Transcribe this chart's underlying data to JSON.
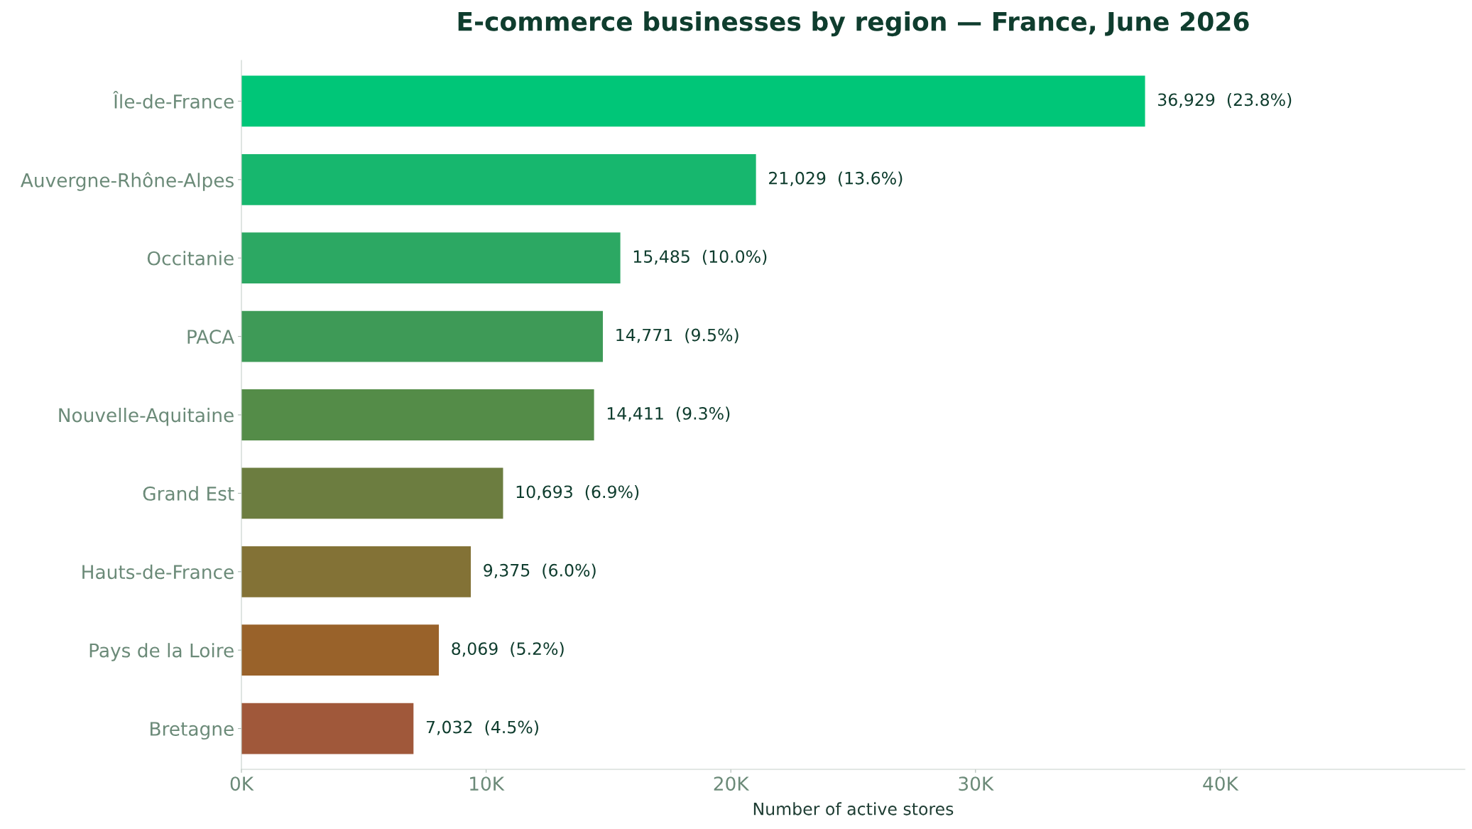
{
  "chart_data": {
    "type": "bar",
    "orientation": "horizontal",
    "title": "E-commerce businesses by region — France, June 2026",
    "xlabel": "Number of active stores",
    "categories": [
      "Île-de-France",
      "Auvergne-Rhône-Alpes",
      "Occitanie",
      "PACA",
      "Nouvelle-Aquitaine",
      "Grand Est",
      "Hauts-de-France",
      "Pays de la Loire",
      "Bretagne"
    ],
    "values": [
      36929,
      21029,
      15485,
      14771,
      14411,
      10693,
      9375,
      8069,
      7032
    ],
    "colors": [
      "#00c678",
      "#17b76e",
      "#2ca863",
      "#3e9a57",
      "#548c48",
      "#6c7d40",
      "#837236",
      "#99622a",
      "#a0583a"
    ],
    "value_labels": [
      "36,929  (23.8%)",
      "21,029  (13.6%)",
      "15,485  (10.0%)",
      "14,771  (9.5%)",
      "14,411  (9.3%)",
      "10,693  (6.9%)",
      "9,375  (6.0%)",
      "8,069  (5.2%)",
      "7,032  (4.5%)"
    ],
    "xlim": [
      0,
      50000
    ],
    "xticks": [
      {
        "value": 0,
        "label": "0K"
      },
      {
        "value": 10000,
        "label": "10K"
      },
      {
        "value": 20000,
        "label": "20K"
      },
      {
        "value": 30000,
        "label": "30K"
      },
      {
        "value": 40000,
        "label": "40K"
      }
    ],
    "grid": false,
    "legend": false
  }
}
